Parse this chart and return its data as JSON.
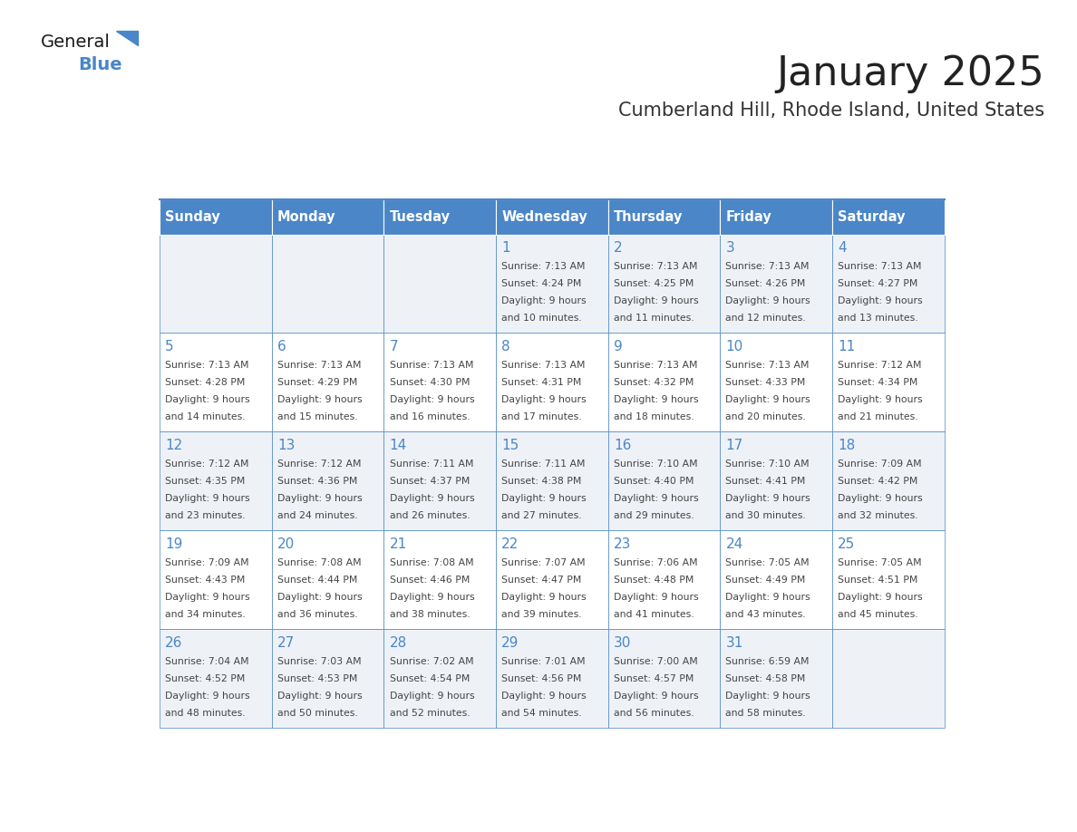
{
  "title": "January 2025",
  "subtitle": "Cumberland Hill, Rhode Island, United States",
  "days_of_week": [
    "Sunday",
    "Monday",
    "Tuesday",
    "Wednesday",
    "Thursday",
    "Friday",
    "Saturday"
  ],
  "header_bg": "#4a86c8",
  "header_text_color": "#ffffff",
  "cell_bg_light": "#eef2f7",
  "cell_bg_white": "#ffffff",
  "grid_line_color": "#4a86c8",
  "day_num_color": "#4a86c8",
  "text_color": "#444444",
  "title_color": "#222222",
  "subtitle_color": "#333333",
  "calendar_data": [
    [
      {
        "day": null,
        "sunrise": null,
        "sunset": null,
        "daylight_line1": null,
        "daylight_line2": null
      },
      {
        "day": null,
        "sunrise": null,
        "sunset": null,
        "daylight_line1": null,
        "daylight_line2": null
      },
      {
        "day": null,
        "sunrise": null,
        "sunset": null,
        "daylight_line1": null,
        "daylight_line2": null
      },
      {
        "day": "1",
        "sunrise": "7:13 AM",
        "sunset": "4:24 PM",
        "daylight_line1": "Daylight: 9 hours",
        "daylight_line2": "and 10 minutes."
      },
      {
        "day": "2",
        "sunrise": "7:13 AM",
        "sunset": "4:25 PM",
        "daylight_line1": "Daylight: 9 hours",
        "daylight_line2": "and 11 minutes."
      },
      {
        "day": "3",
        "sunrise": "7:13 AM",
        "sunset": "4:26 PM",
        "daylight_line1": "Daylight: 9 hours",
        "daylight_line2": "and 12 minutes."
      },
      {
        "day": "4",
        "sunrise": "7:13 AM",
        "sunset": "4:27 PM",
        "daylight_line1": "Daylight: 9 hours",
        "daylight_line2": "and 13 minutes."
      }
    ],
    [
      {
        "day": "5",
        "sunrise": "7:13 AM",
        "sunset": "4:28 PM",
        "daylight_line1": "Daylight: 9 hours",
        "daylight_line2": "and 14 minutes."
      },
      {
        "day": "6",
        "sunrise": "7:13 AM",
        "sunset": "4:29 PM",
        "daylight_line1": "Daylight: 9 hours",
        "daylight_line2": "and 15 minutes."
      },
      {
        "day": "7",
        "sunrise": "7:13 AM",
        "sunset": "4:30 PM",
        "daylight_line1": "Daylight: 9 hours",
        "daylight_line2": "and 16 minutes."
      },
      {
        "day": "8",
        "sunrise": "7:13 AM",
        "sunset": "4:31 PM",
        "daylight_line1": "Daylight: 9 hours",
        "daylight_line2": "and 17 minutes."
      },
      {
        "day": "9",
        "sunrise": "7:13 AM",
        "sunset": "4:32 PM",
        "daylight_line1": "Daylight: 9 hours",
        "daylight_line2": "and 18 minutes."
      },
      {
        "day": "10",
        "sunrise": "7:13 AM",
        "sunset": "4:33 PM",
        "daylight_line1": "Daylight: 9 hours",
        "daylight_line2": "and 20 minutes."
      },
      {
        "day": "11",
        "sunrise": "7:12 AM",
        "sunset": "4:34 PM",
        "daylight_line1": "Daylight: 9 hours",
        "daylight_line2": "and 21 minutes."
      }
    ],
    [
      {
        "day": "12",
        "sunrise": "7:12 AM",
        "sunset": "4:35 PM",
        "daylight_line1": "Daylight: 9 hours",
        "daylight_line2": "and 23 minutes."
      },
      {
        "day": "13",
        "sunrise": "7:12 AM",
        "sunset": "4:36 PM",
        "daylight_line1": "Daylight: 9 hours",
        "daylight_line2": "and 24 minutes."
      },
      {
        "day": "14",
        "sunrise": "7:11 AM",
        "sunset": "4:37 PM",
        "daylight_line1": "Daylight: 9 hours",
        "daylight_line2": "and 26 minutes."
      },
      {
        "day": "15",
        "sunrise": "7:11 AM",
        "sunset": "4:38 PM",
        "daylight_line1": "Daylight: 9 hours",
        "daylight_line2": "and 27 minutes."
      },
      {
        "day": "16",
        "sunrise": "7:10 AM",
        "sunset": "4:40 PM",
        "daylight_line1": "Daylight: 9 hours",
        "daylight_line2": "and 29 minutes."
      },
      {
        "day": "17",
        "sunrise": "7:10 AM",
        "sunset": "4:41 PM",
        "daylight_line1": "Daylight: 9 hours",
        "daylight_line2": "and 30 minutes."
      },
      {
        "day": "18",
        "sunrise": "7:09 AM",
        "sunset": "4:42 PM",
        "daylight_line1": "Daylight: 9 hours",
        "daylight_line2": "and 32 minutes."
      }
    ],
    [
      {
        "day": "19",
        "sunrise": "7:09 AM",
        "sunset": "4:43 PM",
        "daylight_line1": "Daylight: 9 hours",
        "daylight_line2": "and 34 minutes."
      },
      {
        "day": "20",
        "sunrise": "7:08 AM",
        "sunset": "4:44 PM",
        "daylight_line1": "Daylight: 9 hours",
        "daylight_line2": "and 36 minutes."
      },
      {
        "day": "21",
        "sunrise": "7:08 AM",
        "sunset": "4:46 PM",
        "daylight_line1": "Daylight: 9 hours",
        "daylight_line2": "and 38 minutes."
      },
      {
        "day": "22",
        "sunrise": "7:07 AM",
        "sunset": "4:47 PM",
        "daylight_line1": "Daylight: 9 hours",
        "daylight_line2": "and 39 minutes."
      },
      {
        "day": "23",
        "sunrise": "7:06 AM",
        "sunset": "4:48 PM",
        "daylight_line1": "Daylight: 9 hours",
        "daylight_line2": "and 41 minutes."
      },
      {
        "day": "24",
        "sunrise": "7:05 AM",
        "sunset": "4:49 PM",
        "daylight_line1": "Daylight: 9 hours",
        "daylight_line2": "and 43 minutes."
      },
      {
        "day": "25",
        "sunrise": "7:05 AM",
        "sunset": "4:51 PM",
        "daylight_line1": "Daylight: 9 hours",
        "daylight_line2": "and 45 minutes."
      }
    ],
    [
      {
        "day": "26",
        "sunrise": "7:04 AM",
        "sunset": "4:52 PM",
        "daylight_line1": "Daylight: 9 hours",
        "daylight_line2": "and 48 minutes."
      },
      {
        "day": "27",
        "sunrise": "7:03 AM",
        "sunset": "4:53 PM",
        "daylight_line1": "Daylight: 9 hours",
        "daylight_line2": "and 50 minutes."
      },
      {
        "day": "28",
        "sunrise": "7:02 AM",
        "sunset": "4:54 PM",
        "daylight_line1": "Daylight: 9 hours",
        "daylight_line2": "and 52 minutes."
      },
      {
        "day": "29",
        "sunrise": "7:01 AM",
        "sunset": "4:56 PM",
        "daylight_line1": "Daylight: 9 hours",
        "daylight_line2": "and 54 minutes."
      },
      {
        "day": "30",
        "sunrise": "7:00 AM",
        "sunset": "4:57 PM",
        "daylight_line1": "Daylight: 9 hours",
        "daylight_line2": "and 56 minutes."
      },
      {
        "day": "31",
        "sunrise": "6:59 AM",
        "sunset": "4:58 PM",
        "daylight_line1": "Daylight: 9 hours",
        "daylight_line2": "and 58 minutes."
      },
      {
        "day": null,
        "sunrise": null,
        "sunset": null,
        "daylight_line1": null,
        "daylight_line2": null
      }
    ]
  ]
}
